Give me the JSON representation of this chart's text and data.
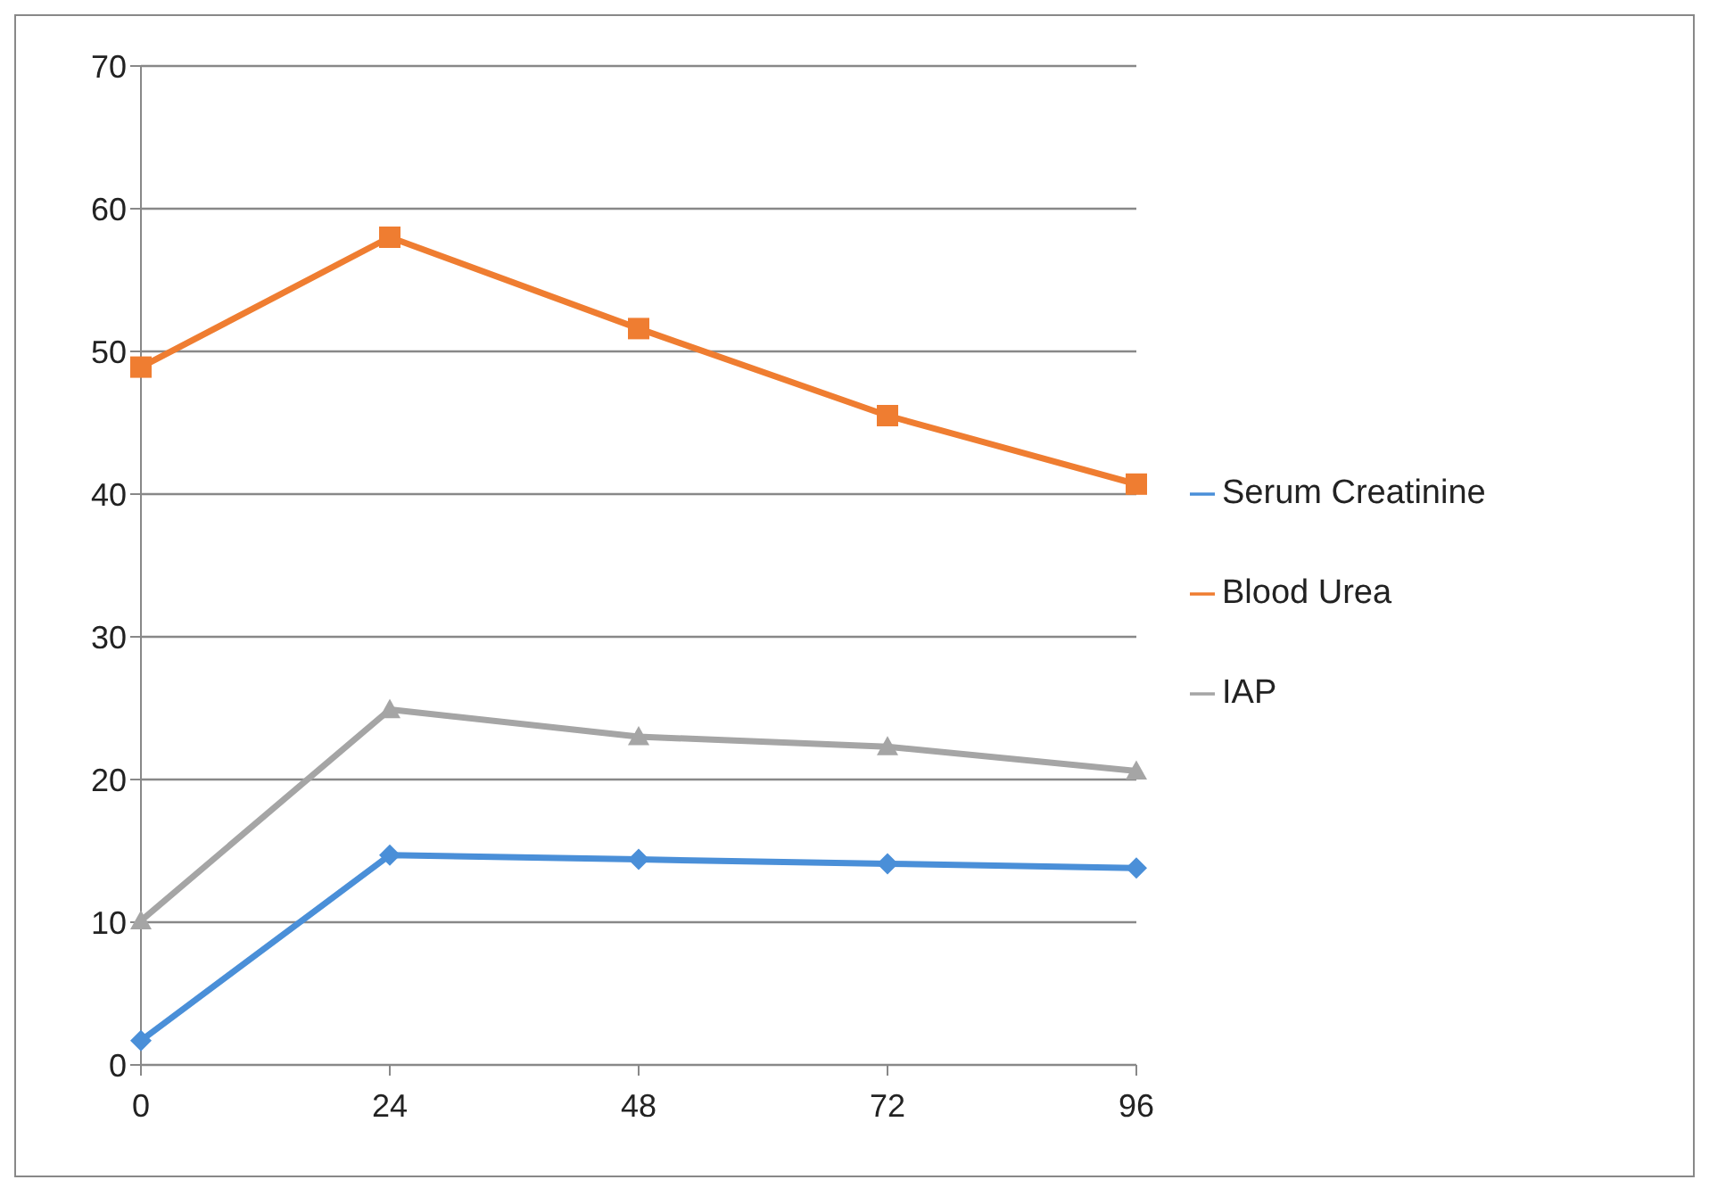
{
  "chart_data": {
    "type": "line",
    "categories": [
      "0",
      "24",
      "48",
      "72",
      "96"
    ],
    "series": [
      {
        "name": "Serum Creatinine",
        "color": "#4a8fd8",
        "marker": "diamond",
        "values": [
          1.7,
          14.7,
          14.4,
          14.1,
          13.8
        ]
      },
      {
        "name": "Blood Urea",
        "color": "#ef7d31",
        "marker": "square",
        "values": [
          48.9,
          58.0,
          51.6,
          45.5,
          40.7
        ]
      },
      {
        "name": "IAP",
        "color": "#a5a5a5",
        "marker": "triangle",
        "values": [
          10.1,
          24.9,
          23.0,
          22.3,
          20.6
        ]
      }
    ],
    "ylim": [
      0,
      70
    ],
    "yticks": [
      0,
      10,
      20,
      30,
      40,
      50,
      60,
      70
    ],
    "grid": "y",
    "legend": "right"
  }
}
